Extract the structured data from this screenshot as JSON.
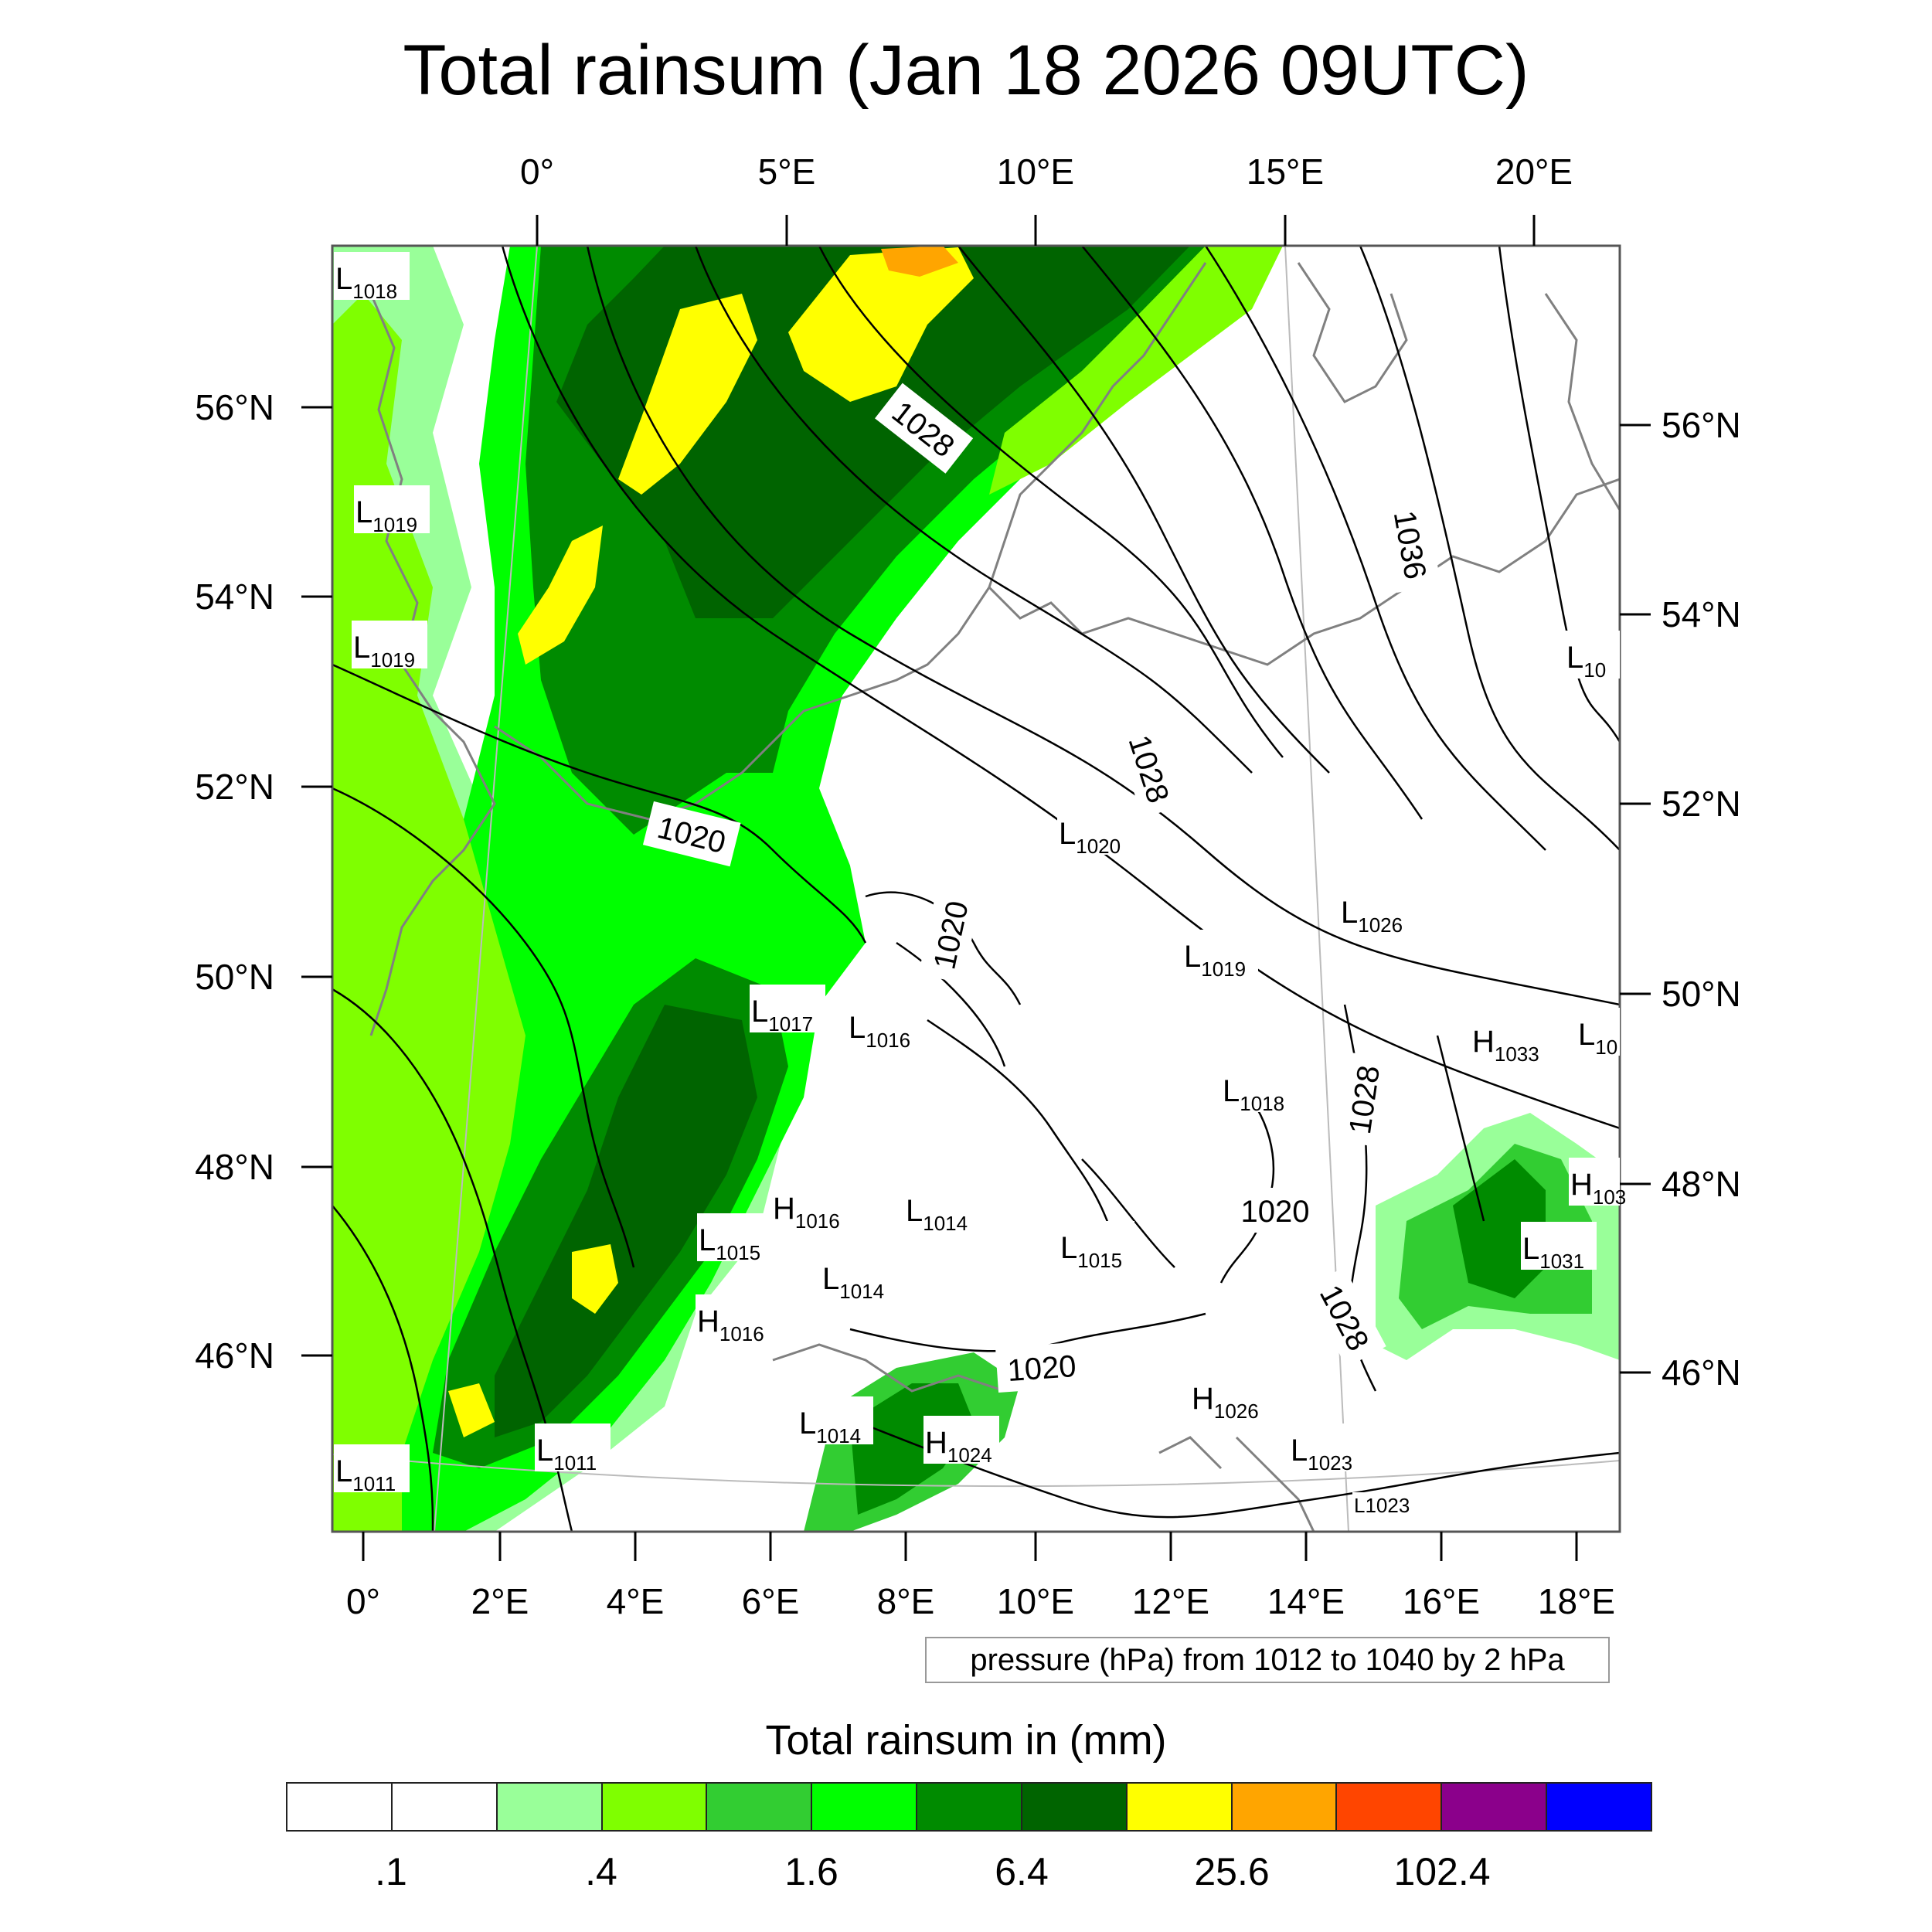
{
  "title": "Total rainsum (Jan 18 2026 09UTC)",
  "axes": {
    "top_lon_labels": [
      "0°",
      "5°E",
      "10°E",
      "15°E",
      "20°E"
    ],
    "bottom_lon_labels": [
      "0°",
      "2°E",
      "4°E",
      "6°E",
      "8°E",
      "10°E",
      "12°E",
      "14°E",
      "16°E",
      "18°E"
    ],
    "left_lat_labels": [
      "56°N",
      "54°N",
      "52°N",
      "50°N",
      "48°N",
      "46°N"
    ],
    "right_lat_labels": [
      "56°N",
      "54°N",
      "52°N",
      "50°N",
      "48°N",
      "46°N"
    ]
  },
  "pressure_note": "pressure (hPa) from 1012 to 1040 by 2 hPa",
  "contour_labels": [
    "1028",
    "1036",
    "1028",
    "1020",
    "1020",
    "1028",
    "1020",
    "1028",
    "1020"
  ],
  "pressure_centers": [
    {
      "type": "L",
      "value": "1018"
    },
    {
      "type": "L",
      "value": "1019"
    },
    {
      "type": "L",
      "value": "1019"
    },
    {
      "type": "L",
      "value": "1020"
    },
    {
      "type": "L",
      "value": "1026"
    },
    {
      "type": "L",
      "value": "1019"
    },
    {
      "type": "L",
      "value": "1017"
    },
    {
      "type": "L",
      "value": "1016"
    },
    {
      "type": "H",
      "value": "1033"
    },
    {
      "type": "L",
      "value": "10"
    },
    {
      "type": "L",
      "value": "1018"
    },
    {
      "type": "H",
      "value": "103"
    },
    {
      "type": "H",
      "value": "1016"
    },
    {
      "type": "L",
      "value": "1014"
    },
    {
      "type": "L",
      "value": "1015"
    },
    {
      "type": "L",
      "value": "1015"
    },
    {
      "type": "L",
      "value": "1014"
    },
    {
      "type": "L",
      "value": "1031"
    },
    {
      "type": "H",
      "value": "1016"
    },
    {
      "type": "H",
      "value": "1026"
    },
    {
      "type": "L",
      "value": "1014"
    },
    {
      "type": "H",
      "value": "1024"
    },
    {
      "type": "L",
      "value": "1011"
    },
    {
      "type": "L",
      "value": "1011"
    },
    {
      "type": "L",
      "value": "1023"
    },
    {
      "type": "L",
      "value": "1023"
    },
    {
      "type": "L",
      "value": "10"
    }
  ],
  "legend": {
    "title": "Total rainsum in (mm)",
    "colors": [
      "#ffffff",
      "#ffffff",
      "#99ff99",
      "#7fff00",
      "#32cd32",
      "#00ff00",
      "#008b00",
      "#006400",
      "#ffff00",
      "#ffa500",
      "#ff4500",
      "#8b008b",
      "#0000ff"
    ],
    "labels": [
      ".1",
      ".4",
      "1.6",
      "6.4",
      "25.6",
      "102.4"
    ]
  }
}
